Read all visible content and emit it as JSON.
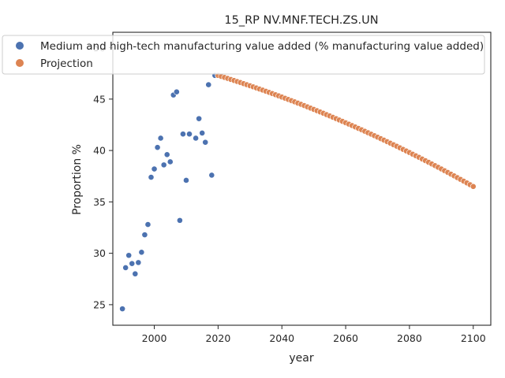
{
  "chart_data": {
    "type": "scatter",
    "title": "15_RP NV.MNF.TECH.ZS.UN",
    "xlabel": "year",
    "ylabel": "Proportion %",
    "xlim": [
      1987,
      2105.5
    ],
    "ylim": [
      23,
      51.5
    ],
    "xticks": [
      2000,
      2020,
      2040,
      2060,
      2080,
      2100
    ],
    "yticks": [
      25,
      30,
      35,
      40,
      45,
      50
    ],
    "grid": false,
    "legend_position": "top-right",
    "colors": {
      "observed": "#4c72b0",
      "projection": "#dd8452"
    },
    "series": [
      {
        "name": "Medium and high-tech manufacturing value added (% manufacturing value added)",
        "x": [
          1990,
          1991,
          1992,
          1993,
          1994,
          1995,
          1996,
          1997,
          1998,
          1999,
          2000,
          2001,
          2002,
          2003,
          2004,
          2005,
          2006,
          2007,
          2008,
          2009,
          2010,
          2011,
          2013,
          2014,
          2015,
          2016,
          2017,
          2018,
          2019,
          2020
        ],
        "y": [
          24.6,
          28.6,
          29.8,
          29.0,
          28.0,
          29.1,
          30.1,
          31.8,
          32.8,
          37.4,
          38.2,
          40.3,
          41.2,
          38.6,
          39.6,
          38.9,
          45.4,
          45.7,
          33.2,
          41.6,
          37.1,
          41.6,
          41.2,
          43.1,
          41.7,
          40.8,
          46.4,
          37.6,
          47.3,
          47.3
        ]
      },
      {
        "name": "Projection",
        "x": [
          2020,
          2100
        ],
        "y": [
          47.3,
          36.5
        ],
        "curve": "quadratic",
        "y_2060": 42.7
      }
    ]
  }
}
